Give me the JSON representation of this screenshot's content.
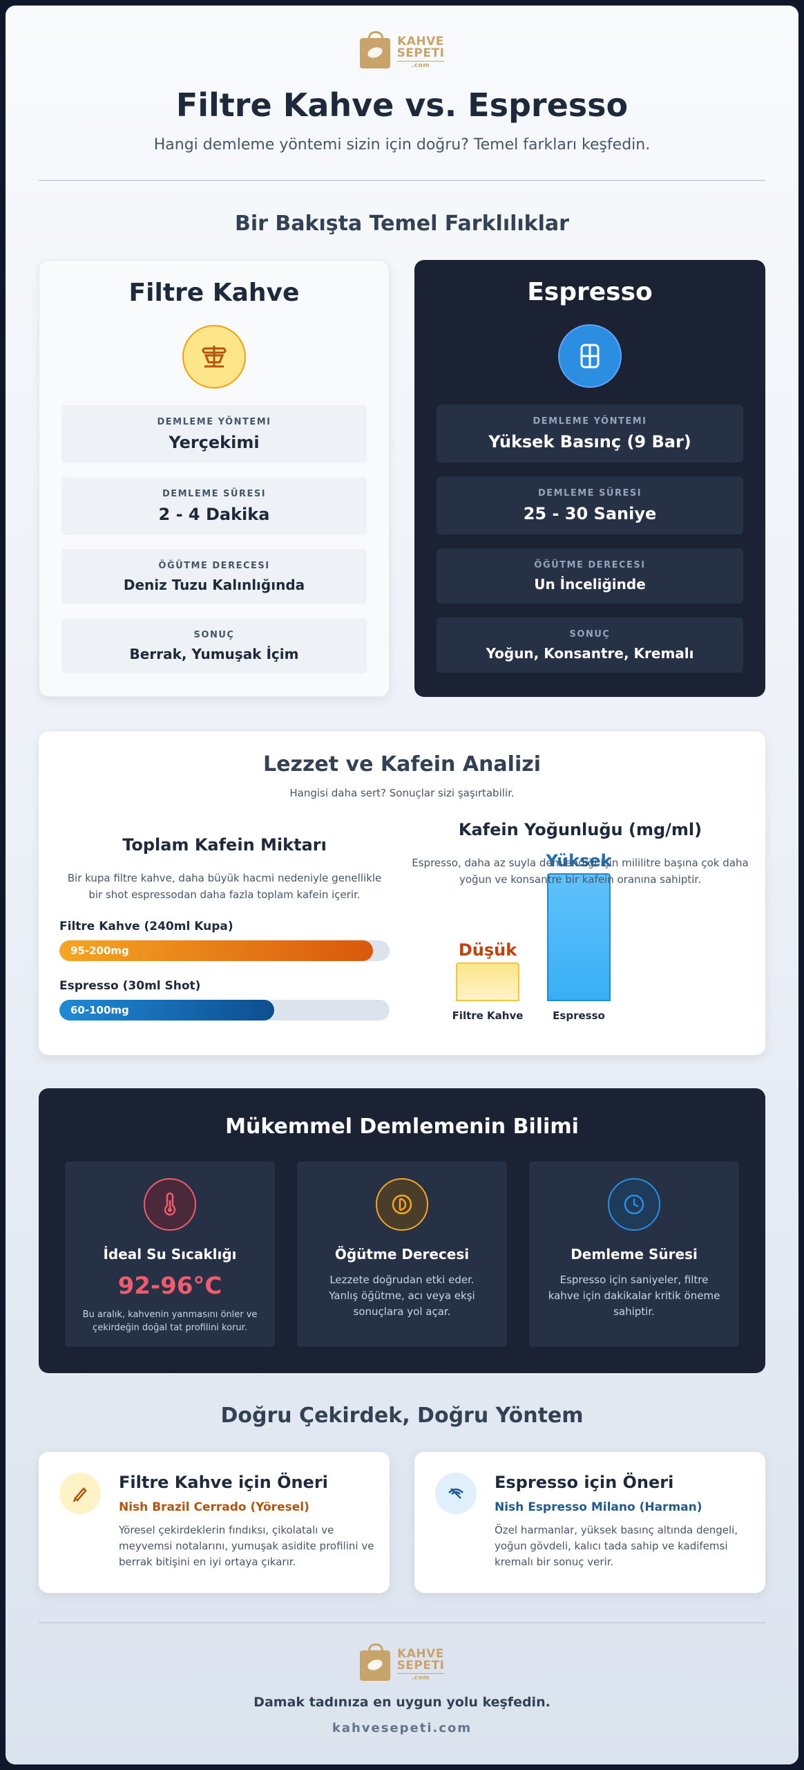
{
  "brand": {
    "name_line1": "KAHVE",
    "name_line2": "SEPETI",
    "name_line3": ".com",
    "color": "#c8a46a"
  },
  "header": {
    "title": "Filtre Kahve vs. Espresso",
    "subtitle": "Hangi demleme yöntemi sizin için doğru? Temel farkları keşfedin."
  },
  "comparison": {
    "section_title": "Bir Bakışta Temel Farklılıklar",
    "filter": {
      "title": "Filtre Kahve",
      "icon": "coffee-dripper-icon",
      "rows": [
        {
          "label": "DEMLEME YÖNTEMI",
          "value": "Yerçekimi"
        },
        {
          "label": "DEMLEME SÜRESI",
          "value": "2 - 4 Dakika"
        },
        {
          "label": "ÖĞÜTME DERECESI",
          "value": "Deniz Tuzu Kalınlığında"
        },
        {
          "label": "SONUÇ",
          "value": "Berrak, Yumuşak İçim"
        }
      ]
    },
    "espresso": {
      "title": "Espresso",
      "icon": "espresso-machine-icon",
      "rows": [
        {
          "label": "DEMLEME YÖNTEMI",
          "value": "Yüksek Basınç (9 Bar)"
        },
        {
          "label": "DEMLEME SÜRESI",
          "value": "25 - 30 Saniye"
        },
        {
          "label": "ÖĞÜTME DERECESI",
          "value": "Un İnceliğinde"
        },
        {
          "label": "SONUÇ",
          "value": "Yoğun, Konsantre, Kremalı"
        }
      ]
    }
  },
  "analysis": {
    "title": "Lezzet ve Kafein Analizi",
    "subtitle": "Hangisi daha sert? Sonuçlar sizi şaşırtabilir.",
    "total": {
      "title": "Toplam Kafein Miktarı",
      "description": "Bir kupa filtre kahve, daha büyük hacmi nedeniyle genellikle bir shot espressodan daha fazla toplam kafein içerir.",
      "bars": [
        {
          "label": "Filtre Kahve (240ml Kupa)",
          "value_text": "95-200mg",
          "fill_fraction": 0.95,
          "color": "#d9580c"
        },
        {
          "label": "Espresso (30ml Shot)",
          "value_text": "60-100mg",
          "fill_fraction": 0.65,
          "color": "#1f8ad6"
        }
      ]
    },
    "density": {
      "title": "Kafein Yoğunluğu (mg/ml)",
      "description": "Espresso, daha az suyla demlendiği için mililitre başına çok daha yoğun ve konsantre bir kafein oranına sahiptir."
    }
  },
  "chart_data": {
    "type": "bar",
    "title": "Kafein Yoğunluğu (mg/ml)",
    "categories": [
      "Filtre Kahve",
      "Espresso"
    ],
    "values": [
      0.3,
      1.0
    ],
    "value_labels": [
      "Düşük",
      "Yüksek"
    ],
    "colors": [
      "#fde68a",
      "#38b0f5"
    ]
  },
  "science": {
    "title": "Mükemmel Demlemenin Bilimi",
    "cards": [
      {
        "icon": "thermometer-icon",
        "title": "İdeal Su Sıcaklığı",
        "value": "92-96°C",
        "text": "Bu aralık, kahvenin yanmasını önler ve çekirdeğin doğal tat profilini korur.",
        "color": "#f05b6e"
      },
      {
        "icon": "grind-dial-icon",
        "title": "Öğütme Derecesi",
        "text": "Lezzete doğrudan etki eder. Yanlış öğütme, acı veya ekşi sonuçlara yol açar.",
        "color": "#f5a623"
      },
      {
        "icon": "clock-icon",
        "title": "Demleme Süresi",
        "text": "Espresso için saniyeler, filtre kahve için dakikalar kritik öneme sahiptir.",
        "color": "#2b8ee0"
      }
    ]
  },
  "recommendations": {
    "title": "Doğru Çekirdek, Doğru Yöntem",
    "items": [
      {
        "icon": "pencil-icon",
        "title": "Filtre Kahve için Öneri",
        "bean": "Nish Brazil Cerrado (Yöresel)",
        "text": "Yöresel çekirdeklerin fındıksı, çikolatalı ve meyvemsi notalarını, yumuşak asidite profilini ve berrak bitişini en iyi ortaya çıkarır.",
        "color": "#b45309"
      },
      {
        "icon": "eye-off-icon",
        "title": "Espresso için Öneri",
        "bean": "Nish Espresso Milano (Harman)",
        "text": "Özel harmanlar, yüksek basınç altında dengeli, yoğun gövdeli, kalıcı tada sahip ve kadifemsi kremalı bir sonuç verir.",
        "color": "#1e5c8f"
      }
    ]
  },
  "footer": {
    "tagline": "Damak tadınıza en uygun yolu keşfedin.",
    "site": "kahvesepeti.com"
  }
}
